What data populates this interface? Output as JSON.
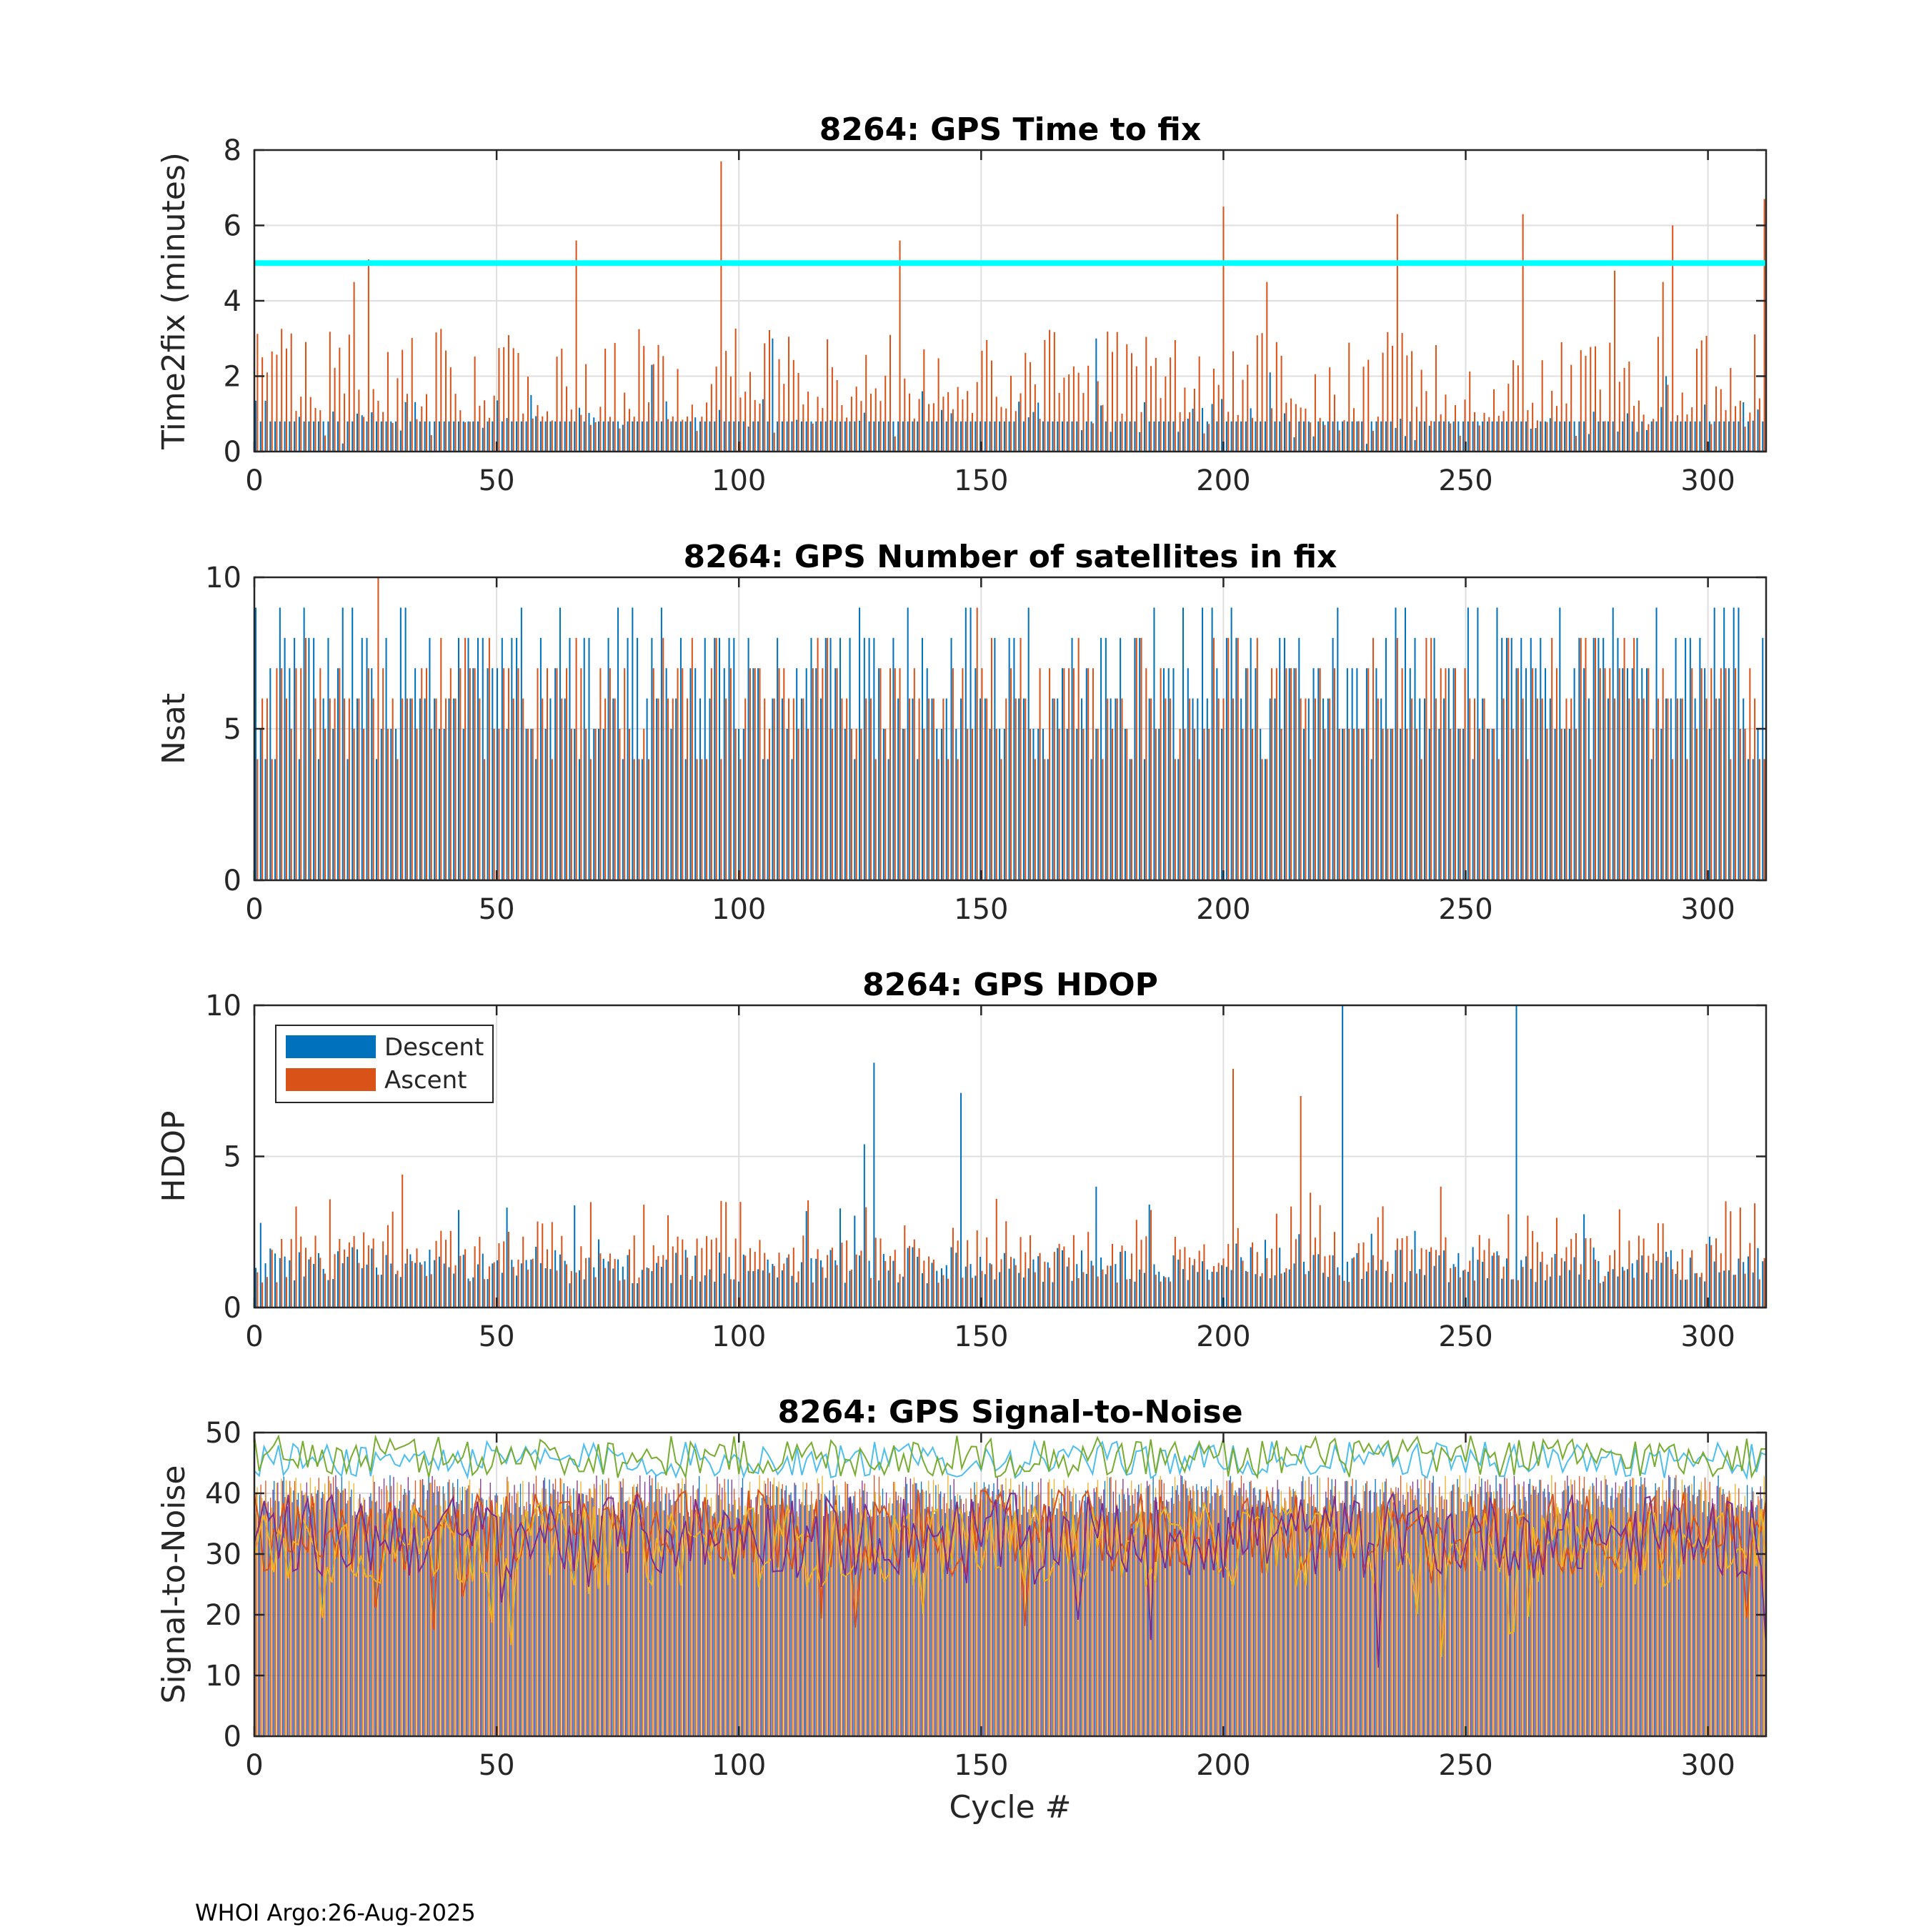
{
  "footer": "WHOI Argo:26-Aug-2025",
  "colors": {
    "descent": "#0072BD",
    "ascent": "#D95319",
    "threshold": "#00FFFF",
    "snr": [
      "#0072BD",
      "#D95319",
      "#EDB120",
      "#7E2F8E",
      "#77AC30",
      "#4DBEEE"
    ]
  },
  "chart_data": [
    {
      "type": "bar",
      "title": "8264: GPS Time to fix",
      "xlabel": "",
      "ylabel": "Time2fix (minutes)",
      "xlim": [
        0,
        312
      ],
      "ylim": [
        0,
        8
      ],
      "xticks": [
        0,
        50,
        100,
        150,
        200,
        250,
        300
      ],
      "yticks": [
        0,
        2,
        4,
        6,
        8
      ],
      "grid": true,
      "threshold_line": 5,
      "series": [
        {
          "name": "Descent",
          "baseline": 0.8,
          "peaks": {
            "0": 1.35,
            "57": 1.5,
            "82": 2.3,
            "107": 3.0,
            "138": 1.6,
            "162": 1.3,
            "174": 3.0,
            "210": 2.1,
            "292": 2.0
          }
        },
        {
          "name": "Ascent",
          "baseline": 2.0,
          "peaks": {
            "1": 2.5,
            "20": 4.5,
            "23": 5.1,
            "66": 5.6,
            "96": 7.7,
            "133": 5.6,
            "200": 6.5,
            "209": 4.5,
            "236": 6.3,
            "262": 6.3,
            "281": 4.8,
            "291": 4.5,
            "293": 6.0,
            "312": 6.7
          }
        }
      ]
    },
    {
      "type": "bar",
      "title": "8264: GPS Number of satellites in fix",
      "xlabel": "",
      "ylabel": "Nsat",
      "xlim": [
        0,
        312
      ],
      "ylim": [
        0,
        10
      ],
      "xticks": [
        0,
        50,
        100,
        150,
        200,
        250,
        300
      ],
      "yticks": [
        0,
        5,
        10
      ],
      "grid": true,
      "series": [
        {
          "name": "Descent",
          "range": [
            4,
            9
          ],
          "peaks": {
            "5": 9,
            "78": 9,
            "84": 9,
            "160": 9,
            "236": 9
          }
        },
        {
          "name": "Ascent",
          "range": [
            4,
            8
          ],
          "peaks": {
            "25": 10,
            "149": 9
          }
        }
      ]
    },
    {
      "type": "bar",
      "title": "8264: GPS HDOP",
      "xlabel": "",
      "ylabel": "HDOP",
      "xlim": [
        0,
        312
      ],
      "ylim": [
        0,
        10
      ],
      "xticks": [
        0,
        50,
        100,
        150,
        200,
        250,
        300
      ],
      "yticks": [
        0,
        5,
        10
      ],
      "grid": true,
      "legend": {
        "placement": "top-left",
        "entries": [
          "Descent",
          "Ascent"
        ]
      },
      "series": [
        {
          "name": "Descent",
          "range": [
            0.8,
            2.0
          ],
          "peaks": {
            "1": 2.8,
            "126": 5.4,
            "128": 8.1,
            "146": 7.1,
            "174": 4.0,
            "225": 10.0,
            "261": 10.0
          }
        },
        {
          "name": "Ascent",
          "range": [
            0.8,
            2.4
          ],
          "peaks": {
            "30": 4.4,
            "202": 7.9,
            "216": 7.0,
            "218": 3.8,
            "245": 4.0
          }
        }
      ]
    },
    {
      "type": "bar+line",
      "title": "8264: GPS Signal-to-Noise",
      "xlabel": "Cycle #",
      "ylabel": "Signal-to-Noise",
      "xlim": [
        0,
        312
      ],
      "ylim": [
        0,
        50
      ],
      "xticks": [
        0,
        50,
        100,
        150,
        200,
        250,
        300
      ],
      "yticks": [
        0,
        10,
        20,
        30,
        40,
        50
      ],
      "grid": true,
      "bars": {
        "name": "per-satellite SNR",
        "range": [
          36,
          43
        ]
      },
      "series": [
        {
          "name": "line-cyan",
          "level": 45.5,
          "jitter": 3
        },
        {
          "name": "line-green",
          "level": 46.0,
          "jitter": 3.5
        },
        {
          "name": "line-orange",
          "level": 33.5,
          "jitter": 7
        },
        {
          "name": "line-yellow",
          "level": 31.5,
          "jitter": 7
        },
        {
          "name": "line-purple",
          "level": 33.0,
          "jitter": 7
        }
      ]
    }
  ]
}
